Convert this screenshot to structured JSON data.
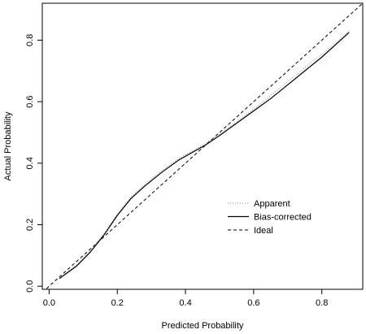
{
  "chart_data": {
    "type": "line",
    "xlabel": "Predicted Probability",
    "ylabel": "Actual Probability",
    "xlim": [
      -0.02,
      0.92
    ],
    "ylim": [
      -0.01,
      0.92
    ],
    "xticks": [
      0.0,
      0.2,
      0.4,
      0.6,
      0.8
    ],
    "xtick_labels": [
      "0.0",
      "0.2",
      "0.4",
      "0.6",
      "0.8"
    ],
    "yticks": [
      0.0,
      0.2,
      0.4,
      0.6,
      0.8
    ],
    "ytick_labels": [
      "0.0",
      "0.2",
      "0.4",
      "0.6",
      "0.8"
    ],
    "grid": false,
    "legend_position": "center-right",
    "series": [
      {
        "name": "Apparent",
        "style": "dotted",
        "color": "#888888",
        "x": [
          0.03,
          0.08,
          0.12,
          0.16,
          0.2,
          0.24,
          0.28,
          0.33,
          0.38,
          0.42,
          0.46,
          0.5,
          0.55,
          0.6,
          0.65,
          0.7,
          0.75,
          0.8,
          0.85,
          0.88
        ],
        "y": [
          0.025,
          0.07,
          0.115,
          0.17,
          0.235,
          0.29,
          0.33,
          0.375,
          0.415,
          0.44,
          0.465,
          0.495,
          0.535,
          0.575,
          0.62,
          0.665,
          0.71,
          0.755,
          0.8,
          0.83
        ]
      },
      {
        "name": "Bias-corrected",
        "style": "solid",
        "color": "#000000",
        "x": [
          0.03,
          0.08,
          0.12,
          0.16,
          0.2,
          0.24,
          0.28,
          0.33,
          0.38,
          0.42,
          0.46,
          0.5,
          0.55,
          0.6,
          0.65,
          0.7,
          0.75,
          0.8,
          0.85,
          0.88
        ],
        "y": [
          0.025,
          0.065,
          0.11,
          0.165,
          0.23,
          0.285,
          0.325,
          0.37,
          0.41,
          0.435,
          0.46,
          0.49,
          0.53,
          0.57,
          0.61,
          0.655,
          0.7,
          0.745,
          0.795,
          0.825
        ]
      },
      {
        "name": "Ideal",
        "style": "dashed",
        "color": "#000000",
        "x": [
          -0.02,
          0.92
        ],
        "y": [
          -0.02,
          0.92
        ]
      }
    ]
  }
}
